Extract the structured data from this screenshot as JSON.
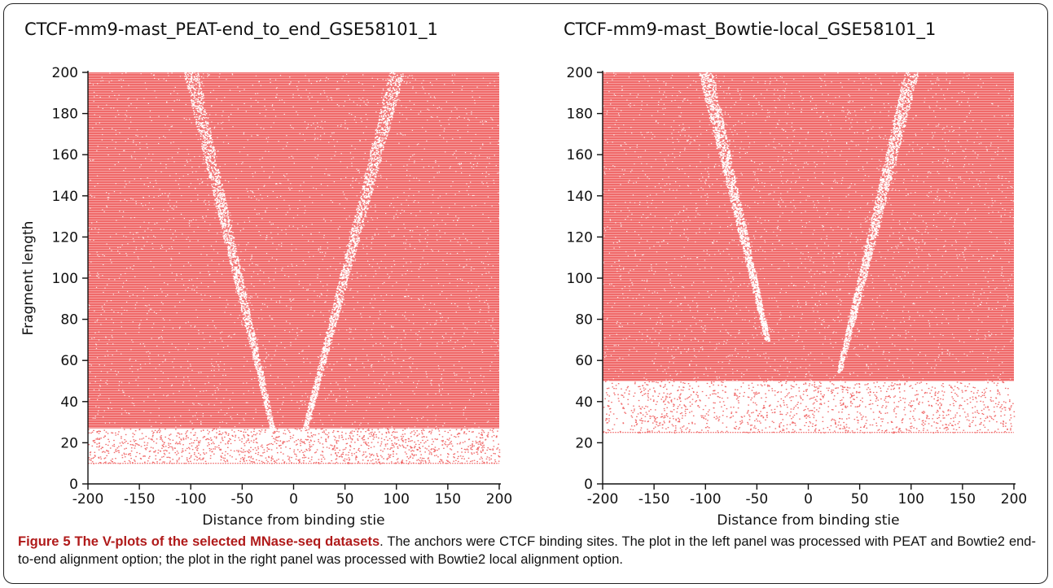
{
  "figure": {
    "caption_title": "Figure 5 The V-plots of the selected MNase-seq datasets",
    "caption_text": ". The anchors were CTCF binding sites. The plot in the left panel was processed with PEAT and Bowtie2 end-to-end alignment option; the plot in the right panel was processed with Bowtie2 local alignment option."
  },
  "chart_data": [
    {
      "type": "scatter",
      "title": "CTCF-mm9-mast_PEAT-end_to_end_GSE58101_1",
      "xlabel": "Distance from binding stie",
      "ylabel": "Fragment length",
      "xlim": [
        -200,
        200
      ],
      "ylim": [
        0,
        200
      ],
      "xticks": [
        "-200",
        "-150",
        "-100",
        "-50",
        "0",
        "50",
        "100",
        "150",
        "200"
      ],
      "yticks": [
        "0",
        "20",
        "40",
        "60",
        "80",
        "100",
        "120",
        "140",
        "160",
        "180",
        "200"
      ],
      "point_color": "#f06a6a",
      "dense_region_min_fragment": 27,
      "sparse_region": [
        10,
        27
      ],
      "depleted_bands": [
        {
          "name": "left arm",
          "from": {
            "x": -20,
            "y": 25
          },
          "to": {
            "x": -100,
            "y": 200
          }
        },
        {
          "name": "right arm",
          "from": {
            "x": 10,
            "y": 25
          },
          "to": {
            "x": 100,
            "y": 200
          }
        }
      ],
      "grid": false
    },
    {
      "type": "scatter",
      "title": "CTCF-mm9-mast_Bowtie-local_GSE58101_1",
      "xlabel": "Distance from binding stie",
      "ylabel": "",
      "xlim": [
        -200,
        200
      ],
      "ylim": [
        0,
        200
      ],
      "xticks": [
        "-200",
        "-150",
        "-100",
        "-50",
        "0",
        "50",
        "100",
        "150",
        "200"
      ],
      "yticks": [
        "0",
        "20",
        "40",
        "60",
        "80",
        "100",
        "120",
        "140",
        "160",
        "180",
        "200"
      ],
      "point_color": "#f06a6a",
      "dense_region_min_fragment": 50,
      "sparse_region": [
        25,
        50
      ],
      "depleted_bands": [
        {
          "name": "left arm",
          "from": {
            "x": -40,
            "y": 70
          },
          "to": {
            "x": -100,
            "y": 200
          }
        },
        {
          "name": "right arm",
          "from": {
            "x": 30,
            "y": 55
          },
          "to": {
            "x": 100,
            "y": 200
          }
        }
      ],
      "grid": false
    }
  ]
}
